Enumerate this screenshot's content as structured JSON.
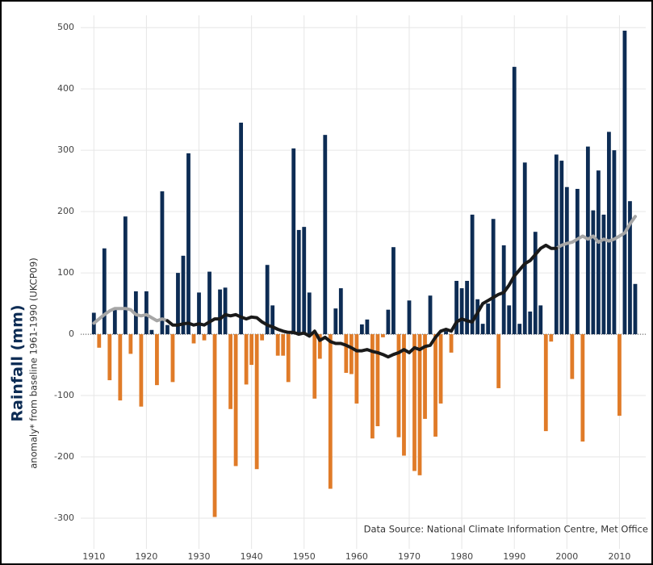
{
  "chart_data": {
    "type": "bar",
    "ylabel": "Rainfall (mm)",
    "ysublabel": "anomaly* from baseline 1961-1990 (UKCP09)",
    "source": "Data Source: National Climate Information Centre, Met Office",
    "x": [
      1910,
      1911,
      1912,
      1913,
      1914,
      1915,
      1916,
      1917,
      1918,
      1919,
      1920,
      1921,
      1922,
      1923,
      1924,
      1925,
      1926,
      1927,
      1928,
      1929,
      1930,
      1931,
      1932,
      1933,
      1934,
      1935,
      1936,
      1937,
      1938,
      1939,
      1940,
      1941,
      1942,
      1943,
      1944,
      1945,
      1946,
      1947,
      1948,
      1949,
      1950,
      1951,
      1952,
      1953,
      1954,
      1955,
      1956,
      1957,
      1958,
      1959,
      1960,
      1961,
      1962,
      1963,
      1964,
      1965,
      1966,
      1967,
      1968,
      1969,
      1970,
      1971,
      1972,
      1973,
      1974,
      1975,
      1976,
      1977,
      1978,
      1979,
      1980,
      1981,
      1982,
      1983,
      1984,
      1985,
      1986,
      1987,
      1988,
      1989,
      1990,
      1991,
      1992,
      1993,
      1994,
      1995,
      1996,
      1997,
      1998,
      1999,
      2000,
      2001,
      2002,
      2003,
      2004,
      2005,
      2006,
      2007,
      2008,
      2009,
      2010,
      2011,
      2012,
      2013
    ],
    "values": [
      35,
      -22,
      140,
      -75,
      40,
      -108,
      192,
      -32,
      70,
      -118,
      70,
      7,
      -83,
      233,
      15,
      -78,
      100,
      128,
      295,
      -15,
      68,
      -10,
      102,
      -298,
      73,
      76,
      -122,
      -215,
      345,
      -82,
      -50,
      -220,
      -10,
      113,
      47,
      -35,
      -35,
      -78,
      303,
      170,
      175,
      68,
      -105,
      -40,
      325,
      -252,
      42,
      75,
      -63,
      -65,
      -113,
      16,
      24,
      -170,
      -150,
      -5,
      40,
      142,
      -168,
      -198,
      55,
      -223,
      -230,
      -138,
      63,
      -167,
      -113,
      5,
      -30,
      87,
      75,
      87,
      195,
      57,
      17,
      50,
      188,
      -88,
      145,
      47,
      436,
      17,
      280,
      37,
      167,
      47,
      -158,
      -12,
      293,
      283,
      240,
      -73,
      237,
      -175,
      306,
      202,
      267,
      195,
      330,
      300,
      -133,
      495,
      217,
      82
    ],
    "pos_color": "#0d2c54",
    "neg_color": "#e07b28",
    "series": [
      {
        "type": "line",
        "color": "#a6a6a6",
        "values": [
          18,
          25,
          32,
          38,
          42,
          42,
          42,
          40,
          32,
          30,
          32,
          27,
          22,
          25,
          22,
          null,
          null,
          null,
          null,
          null,
          null,
          null,
          null,
          null,
          null,
          null,
          null,
          null,
          null,
          null,
          null,
          null,
          null,
          null,
          null,
          null,
          null,
          null,
          null,
          null,
          null,
          null,
          null,
          null,
          null,
          null,
          null,
          null,
          null,
          null,
          null,
          null,
          null,
          null,
          null,
          null,
          null,
          null,
          null,
          null,
          null,
          null,
          null,
          null,
          null,
          null,
          null,
          null,
          null,
          null,
          null,
          null,
          null,
          null,
          null,
          null,
          null,
          null,
          null,
          null,
          null,
          null,
          null,
          null,
          null,
          null,
          null,
          null,
          140,
          145,
          148,
          150,
          155,
          160,
          155,
          160,
          150,
          155,
          152,
          155,
          160,
          165,
          180,
          192
        ]
      },
      {
        "type": "line",
        "color": "#1a1a1a",
        "values": [
          null,
          null,
          null,
          null,
          null,
          null,
          null,
          null,
          null,
          null,
          null,
          null,
          null,
          null,
          22,
          15,
          15,
          17,
          18,
          15,
          17,
          15,
          20,
          25,
          25,
          32,
          30,
          32,
          28,
          25,
          28,
          27,
          20,
          15,
          12,
          8,
          5,
          3,
          3,
          0,
          2,
          -3,
          5,
          -10,
          -5,
          -12,
          -15,
          -15,
          -18,
          -22,
          -27,
          -27,
          -25,
          -28,
          -30,
          -33,
          -37,
          -33,
          -30,
          -25,
          -30,
          -22,
          -25,
          -20,
          -18,
          -5,
          5,
          8,
          5,
          20,
          25,
          22,
          20,
          35,
          50,
          55,
          60,
          65,
          68,
          80,
          95,
          105,
          115,
          120,
          130,
          140,
          145,
          140,
          140,
          null,
          null,
          null,
          null,
          null,
          null,
          null,
          null,
          null,
          null,
          null,
          null,
          null,
          null,
          null
        ]
      }
    ],
    "xlim": [
      1907.5,
      2015
    ],
    "xticks": [
      1910,
      1920,
      1930,
      1940,
      1950,
      1960,
      1970,
      1980,
      1990,
      2000,
      2010
    ],
    "ylim": [
      -350,
      520
    ],
    "yticks": [
      -300,
      -200,
      -100,
      0,
      100,
      200,
      300,
      400,
      500
    ],
    "grid": true
  }
}
